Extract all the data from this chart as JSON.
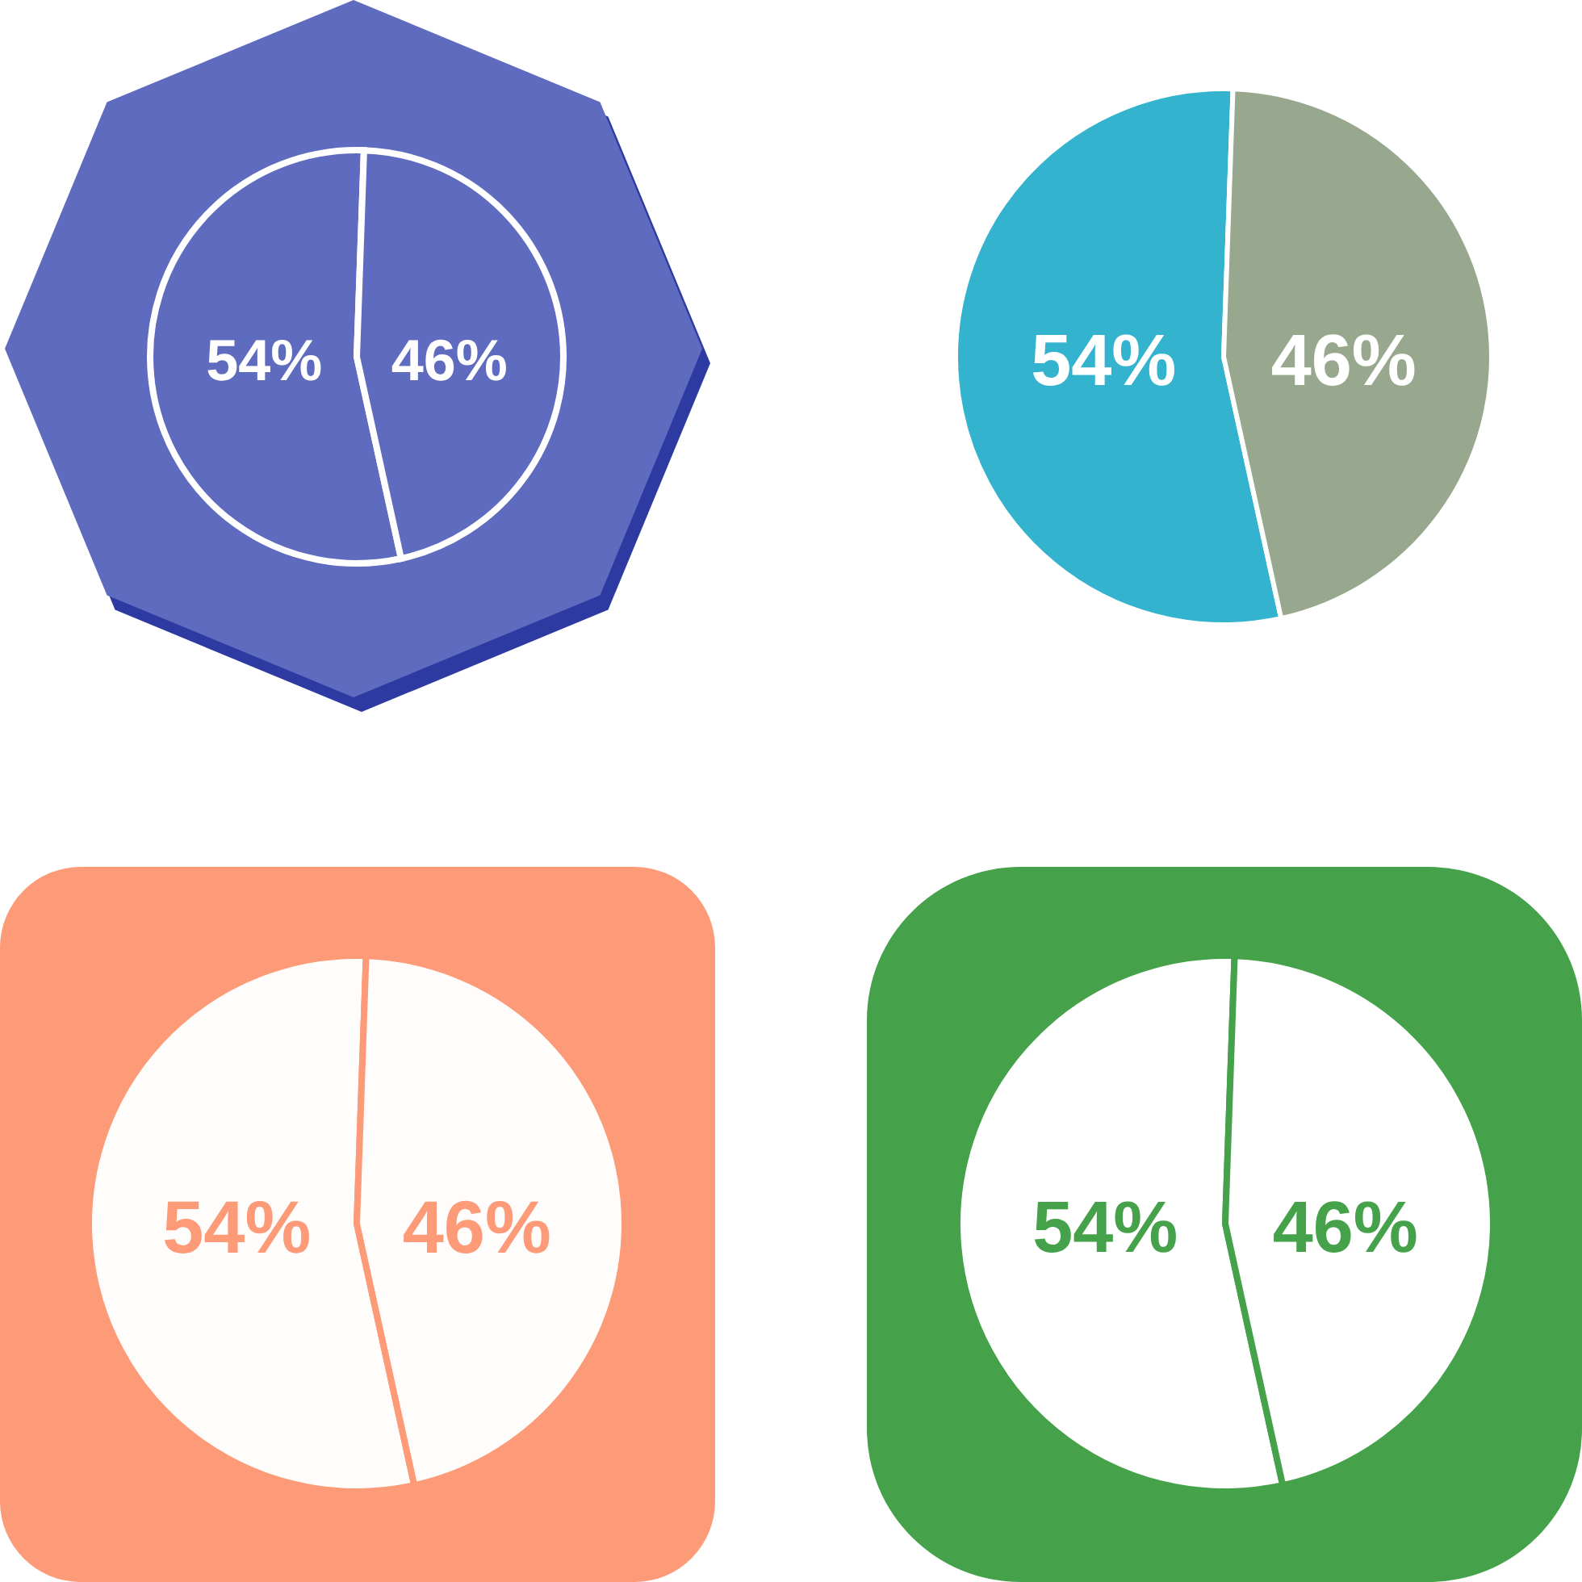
{
  "chart_data": [
    {
      "type": "pie",
      "categories": [
        null,
        null
      ],
      "values": [
        54,
        46
      ],
      "colors": [
        "#5f6bbf",
        "#5f6bbf"
      ],
      "value_labels": [
        "54%",
        "46%"
      ]
    },
    {
      "type": "pie",
      "categories": [
        null,
        null
      ],
      "values": [
        54,
        46
      ],
      "colors": [
        "#33b3cd",
        "#98a88e"
      ],
      "value_labels": [
        "54%",
        "46%"
      ]
    },
    {
      "type": "pie",
      "categories": [
        null,
        null
      ],
      "values": [
        54,
        46
      ],
      "colors": [
        "#fffdfb",
        "#fffdfb"
      ],
      "value_labels": [
        "54%",
        "46%"
      ]
    },
    {
      "type": "pie",
      "categories": [
        null,
        null
      ],
      "values": [
        54,
        46
      ],
      "colors": [
        "#ffffff",
        "#ffffff"
      ],
      "value_labels": [
        "54%",
        "46%"
      ]
    }
  ]
}
